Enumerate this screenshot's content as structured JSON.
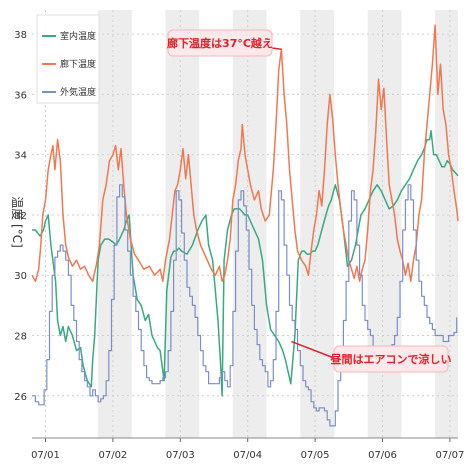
{
  "chart_data": {
    "type": "line",
    "title": "",
    "ylabel": "温度 [°C]",
    "xlabel": "",
    "ylim": [
      24.6,
      38.8
    ],
    "yticks": [
      26,
      28,
      30,
      32,
      34,
      36,
      38
    ],
    "xlim": [
      0.8,
      7.12
    ],
    "xticks": [
      {
        "x": 1,
        "label": "07/01"
      },
      {
        "x": 2,
        "label": "07/02"
      },
      {
        "x": 3,
        "label": "07/03"
      },
      {
        "x": 4,
        "label": "07/04"
      },
      {
        "x": 5,
        "label": "07/05"
      },
      {
        "x": 6,
        "label": "07/06"
      },
      {
        "x": 7,
        "label": "07/07"
      }
    ],
    "grid": true,
    "legend_position": "top-left",
    "shaded_x_ranges": [
      [
        1.78,
        2.28
      ],
      [
        2.78,
        3.28
      ],
      [
        3.78,
        4.28
      ],
      [
        4.78,
        5.28
      ],
      [
        5.78,
        6.28
      ],
      [
        6.78,
        7.12
      ]
    ],
    "series": [
      {
        "name": "室内温度",
        "color": "#3aa880",
        "x": [
          0.8,
          0.85,
          0.92,
          0.97,
          1.0,
          1.04,
          1.08,
          1.15,
          1.18,
          1.22,
          1.26,
          1.3,
          1.34,
          1.4,
          1.46,
          1.52,
          1.56,
          1.62,
          1.68,
          1.7,
          1.73,
          1.78,
          1.82,
          1.88,
          1.94,
          2.0,
          2.05,
          2.1,
          2.16,
          2.2,
          2.24,
          2.3,
          2.36,
          2.42,
          2.48,
          2.53,
          2.58,
          2.62,
          2.66,
          2.7,
          2.76,
          2.8,
          2.86,
          2.9,
          2.94,
          2.98,
          3.02,
          3.1,
          3.18,
          3.26,
          3.32,
          3.38,
          3.42,
          3.48,
          3.52,
          3.56,
          3.6,
          3.62,
          3.65,
          3.7,
          3.76,
          3.8,
          3.84,
          3.88,
          3.92,
          3.96,
          4.0,
          4.06,
          4.1,
          4.16,
          4.22,
          4.28,
          4.34,
          4.4,
          4.46,
          4.52,
          4.56,
          4.6,
          4.64,
          4.7,
          4.75,
          4.8,
          4.84,
          4.88,
          4.92,
          4.96,
          5.0,
          5.04,
          5.1,
          5.16,
          5.2,
          5.24,
          5.3,
          5.36,
          5.42,
          5.48,
          5.54,
          5.6,
          5.64,
          5.68,
          5.74,
          5.8,
          5.86,
          5.92,
          5.98,
          6.04,
          6.1,
          6.16,
          6.22,
          6.28,
          6.34,
          6.4,
          6.46,
          6.52,
          6.58,
          6.62,
          6.66,
          6.7,
          6.72,
          6.76,
          6.8,
          6.84,
          6.88,
          6.92,
          6.96,
          7.0,
          7.04,
          7.08,
          7.12
        ],
        "y": [
          31.5,
          31.5,
          31.3,
          31.5,
          31.8,
          32.0,
          31.0,
          29.8,
          28.5,
          28.0,
          28.3,
          27.8,
          28.3,
          28.0,
          27.5,
          27.6,
          27.0,
          26.5,
          26.3,
          27.2,
          28.0,
          30.5,
          31.0,
          31.2,
          31.2,
          31.1,
          31.0,
          31.2,
          31.5,
          31.8,
          32.0,
          30.0,
          29.2,
          29.0,
          28.5,
          28.7,
          28.0,
          27.8,
          27.6,
          27.5,
          26.5,
          29.5,
          30.6,
          30.8,
          30.8,
          30.9,
          30.8,
          30.7,
          31.0,
          31.5,
          31.8,
          32.0,
          31.0,
          30.5,
          29.5,
          28.5,
          27.0,
          26.0,
          30.5,
          31.5,
          32.0,
          32.2,
          32.2,
          32.2,
          32.1,
          32.0,
          32.0,
          31.7,
          31.5,
          31.2,
          30.5,
          29.0,
          28.2,
          28.0,
          27.8,
          27.5,
          27.2,
          26.8,
          26.4,
          28.0,
          30.5,
          30.8,
          30.8,
          30.7,
          30.7,
          30.8,
          30.8,
          31.0,
          31.5,
          32.0,
          32.3,
          32.5,
          33.0,
          32.5,
          31.5,
          30.3,
          30.5,
          31.0,
          31.5,
          32.0,
          32.2,
          32.5,
          32.8,
          33.0,
          32.8,
          32.5,
          32.2,
          32.3,
          32.5,
          32.8,
          33.0,
          33.2,
          33.5,
          33.8,
          34.0,
          34.2,
          34.5,
          34.5,
          34.8,
          34.0,
          34.0,
          33.8,
          33.6,
          33.6,
          33.8,
          33.7,
          33.5,
          33.4,
          33.3
        ]
      },
      {
        "name": "廊下温度",
        "color": "#f07850",
        "x": [
          0.8,
          0.85,
          0.9,
          0.93,
          0.96,
          1.0,
          1.04,
          1.08,
          1.11,
          1.14,
          1.18,
          1.22,
          1.26,
          1.3,
          1.34,
          1.4,
          1.46,
          1.52,
          1.58,
          1.64,
          1.7,
          1.76,
          1.8,
          1.85,
          1.9,
          1.95,
          2.0,
          2.04,
          2.08,
          2.12,
          2.16,
          2.2,
          2.26,
          2.32,
          2.38,
          2.46,
          2.54,
          2.62,
          2.7,
          2.74,
          2.78,
          2.84,
          2.88,
          2.92,
          2.96,
          3.0,
          3.04,
          3.08,
          3.12,
          3.16,
          3.2,
          3.24,
          3.3,
          3.38,
          3.46,
          3.52,
          3.58,
          3.62,
          3.66,
          3.7,
          3.74,
          3.78,
          3.82,
          3.86,
          3.9,
          3.92,
          3.96,
          4.0,
          4.04,
          4.1,
          4.16,
          4.2,
          4.26,
          4.32,
          4.38,
          4.42,
          4.46,
          4.5,
          4.54,
          4.58,
          4.62,
          4.66,
          4.7,
          4.74,
          4.8,
          4.86,
          4.9,
          4.94,
          4.98,
          5.02,
          5.06,
          5.1,
          5.14,
          5.18,
          5.22,
          5.26,
          5.3,
          5.34,
          5.38,
          5.42,
          5.46,
          5.5,
          5.54,
          5.58,
          5.62,
          5.66,
          5.7,
          5.74,
          5.78,
          5.82,
          5.86,
          5.9,
          5.94,
          5.98,
          6.02,
          6.06,
          6.1,
          6.14,
          6.18,
          6.22,
          6.26,
          6.3,
          6.34,
          6.38,
          6.42,
          6.46,
          6.5,
          6.54,
          6.58,
          6.62,
          6.66,
          6.7,
          6.74,
          6.78,
          6.82,
          6.86,
          6.9,
          6.94,
          6.98,
          7.02,
          7.06,
          7.1,
          7.12
        ],
        "y": [
          30.0,
          29.8,
          30.2,
          31.0,
          32.0,
          32.5,
          33.5,
          34.0,
          34.3,
          33.5,
          34.5,
          33.8,
          32.0,
          31.0,
          30.6,
          30.3,
          30.5,
          30.2,
          30.3,
          30.0,
          29.8,
          30.4,
          31.0,
          32.5,
          33.0,
          33.8,
          34.0,
          34.3,
          33.5,
          34.2,
          33.0,
          32.0,
          31.2,
          30.7,
          30.5,
          30.2,
          30.3,
          30.0,
          30.2,
          29.8,
          30.5,
          31.2,
          32.0,
          32.8,
          33.0,
          33.5,
          34.2,
          33.2,
          34.0,
          33.0,
          32.0,
          31.5,
          31.0,
          30.6,
          30.2,
          30.0,
          30.3,
          29.8,
          30.0,
          30.5,
          31.2,
          32.5,
          33.0,
          33.8,
          34.2,
          35.0,
          34.0,
          33.5,
          33.0,
          32.5,
          32.8,
          32.2,
          31.8,
          32.0,
          33.5,
          35.0,
          36.8,
          37.5,
          36.0,
          35.0,
          33.5,
          32.5,
          31.5,
          30.8,
          30.5,
          30.3,
          30.0,
          30.8,
          31.5,
          32.0,
          32.8,
          32.3,
          33.5,
          35.0,
          36.0,
          35.2,
          34.0,
          33.0,
          32.2,
          31.5,
          31.0,
          30.5,
          30.2,
          29.9,
          30.3,
          29.8,
          30.2,
          30.5,
          31.5,
          32.8,
          33.5,
          34.8,
          36.5,
          35.5,
          36.2,
          34.5,
          33.0,
          32.5,
          32.0,
          31.2,
          30.8,
          30.5,
          30.0,
          30.4,
          29.8,
          30.5,
          31.0,
          32.0,
          32.5,
          34.0,
          35.0,
          36.0,
          37.0,
          38.3,
          36.0,
          37.0,
          35.5,
          35.0,
          34.0,
          33.5,
          32.8,
          32.2,
          31.8
        ]
      },
      {
        "name": "外気温度",
        "color": "#7b8ec8",
        "step": true,
        "x": [
          0.8,
          0.85,
          0.9,
          0.94,
          0.98,
          1.02,
          1.06,
          1.1,
          1.14,
          1.18,
          1.22,
          1.26,
          1.3,
          1.34,
          1.38,
          1.42,
          1.46,
          1.5,
          1.54,
          1.58,
          1.62,
          1.66,
          1.7,
          1.74,
          1.78,
          1.82,
          1.86,
          1.9,
          1.94,
          1.98,
          2.02,
          2.06,
          2.1,
          2.14,
          2.18,
          2.22,
          2.26,
          2.3,
          2.34,
          2.38,
          2.42,
          2.46,
          2.5,
          2.54,
          2.58,
          2.62,
          2.66,
          2.7,
          2.74,
          2.78,
          2.82,
          2.86,
          2.9,
          2.94,
          2.98,
          3.02,
          3.06,
          3.1,
          3.14,
          3.18,
          3.22,
          3.26,
          3.3,
          3.34,
          3.38,
          3.42,
          3.46,
          3.5,
          3.54,
          3.58,
          3.62,
          3.66,
          3.7,
          3.74,
          3.78,
          3.82,
          3.86,
          3.9,
          3.94,
          3.98,
          4.02,
          4.06,
          4.1,
          4.14,
          4.18,
          4.22,
          4.26,
          4.3,
          4.34,
          4.38,
          4.42,
          4.46,
          4.5,
          4.54,
          4.58,
          4.62,
          4.66,
          4.7,
          4.74,
          4.78,
          4.82,
          4.86,
          4.9,
          4.94,
          4.98,
          5.02,
          5.06,
          5.1,
          5.14,
          5.18,
          5.22,
          5.26,
          5.3,
          5.34,
          5.38,
          5.42,
          5.46,
          5.5,
          5.54,
          5.58,
          5.62,
          5.66,
          5.7,
          5.74,
          5.78,
          5.82,
          5.86,
          5.9,
          5.94,
          5.98,
          6.02,
          6.06,
          6.1,
          6.14,
          6.18,
          6.22,
          6.26,
          6.3,
          6.34,
          6.38,
          6.42,
          6.46,
          6.5,
          6.54,
          6.58,
          6.62,
          6.66,
          6.7,
          6.74,
          6.78,
          6.82,
          6.86,
          6.9,
          6.94,
          6.98,
          7.02,
          7.06,
          7.1
        ],
        "y": [
          26.0,
          25.8,
          25.7,
          25.7,
          26.2,
          27.2,
          28.8,
          30.0,
          30.6,
          30.8,
          31.0,
          30.8,
          30.5,
          30.0,
          29.0,
          28.5,
          27.8,
          27.2,
          26.8,
          26.5,
          26.3,
          26.0,
          26.2,
          26.0,
          25.8,
          25.9,
          26.0,
          26.5,
          27.5,
          29.2,
          31.0,
          32.6,
          33.0,
          32.6,
          31.5,
          30.8,
          30.0,
          29.3,
          28.8,
          28.2,
          27.5,
          27.0,
          26.6,
          26.5,
          26.4,
          26.4,
          26.4,
          26.5,
          26.6,
          26.8,
          27.5,
          28.8,
          30.5,
          32.8,
          32.5,
          31.4,
          30.5,
          29.6,
          29.3,
          29.0,
          28.6,
          28.0,
          27.5,
          27.0,
          26.8,
          26.4,
          26.4,
          26.4,
          26.4,
          26.6,
          26.8,
          26.5,
          26.3,
          27.0,
          28.8,
          30.8,
          32.5,
          32.8,
          32.3,
          31.5,
          30.2,
          29.0,
          28.2,
          27.7,
          27.2,
          27.0,
          26.8,
          26.3,
          26.5,
          27.2,
          28.8,
          32.8,
          32.5,
          31.0,
          30.0,
          29.0,
          28.5,
          28.2,
          27.5,
          27.0,
          26.5,
          26.3,
          26.2,
          25.8,
          25.6,
          25.5,
          25.6,
          25.6,
          25.5,
          25.2,
          25.0,
          25.0,
          25.5,
          26.5,
          27.5,
          28.5,
          29.8,
          31.8,
          32.8,
          32.5,
          31.0,
          30.0,
          29.0,
          28.5,
          28.2,
          28.0,
          27.6,
          27.5,
          27.3,
          27.3,
          27.5,
          27.5,
          27.5,
          27.7,
          28.0,
          28.6,
          29.8,
          31.5,
          32.5,
          33.0,
          32.5,
          31.5,
          30.5,
          29.8,
          29.3,
          29.0,
          28.6,
          28.4,
          28.2,
          28.0,
          28.0,
          28.0,
          27.8,
          27.8,
          28.0,
          28.0,
          28.1,
          28.6
        ]
      }
    ],
    "annotations": [
      {
        "text": "廊下温度は37°C越え",
        "target_x": 4.5,
        "target_y": 37.5
      },
      {
        "text": "昼間はエアコンで涼しい",
        "target_x": 4.65,
        "target_y": 27.8
      }
    ]
  }
}
